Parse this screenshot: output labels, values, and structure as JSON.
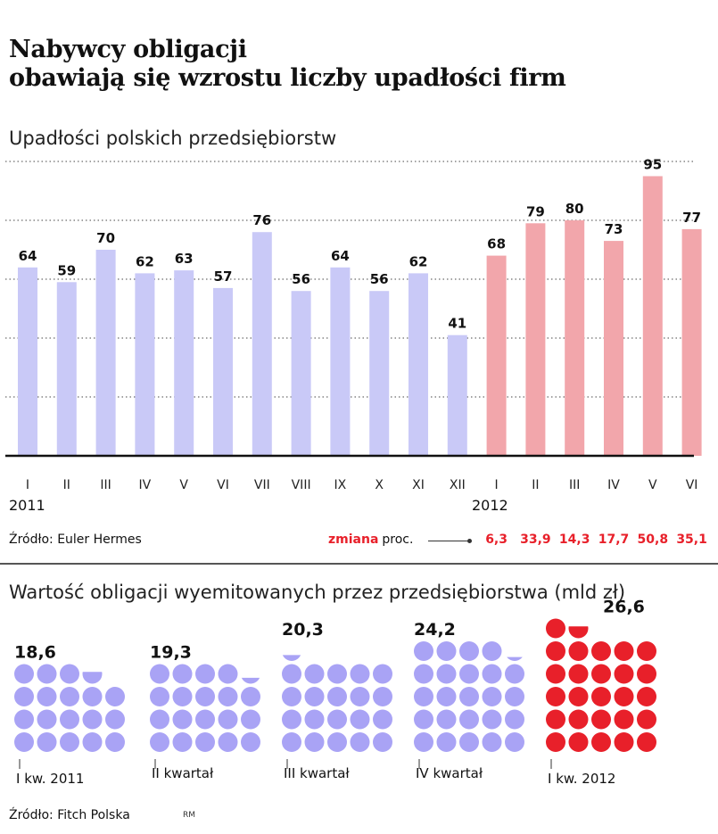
{
  "title_line1": "Nabywcy obligacji",
  "title_line2": "obawiają się wzrostu liczby upadłości firm",
  "bar_section": {
    "subtitle": "Upadłości polskich przedsiębiorstw",
    "source": "Źródło: Euler Hermes",
    "year_labels": [
      "2011",
      "2012"
    ],
    "change_label_red": "zmiana",
    "change_label_black": "proc.",
    "change_values": [
      "6,3",
      "33,9",
      "14,3",
      "17,7",
      "50,8",
      "35,1"
    ],
    "colors": {
      "2011": "#c9c9f7",
      "2012": "#f2a6ab",
      "accent": "#e8202a"
    }
  },
  "chart_data": [
    {
      "type": "bar",
      "title": "Upadłości polskich przedsiębiorstw",
      "categories": [
        "I",
        "II",
        "III",
        "IV",
        "V",
        "VI",
        "VII",
        "VIII",
        "IX",
        "X",
        "XI",
        "XII",
        "I",
        "II",
        "III",
        "IV",
        "V",
        "VI"
      ],
      "values": [
        64,
        59,
        70,
        62,
        63,
        57,
        76,
        56,
        64,
        56,
        62,
        41,
        68,
        79,
        80,
        73,
        95,
        77
      ],
      "series_year": [
        "2011",
        "2011",
        "2011",
        "2011",
        "2011",
        "2011",
        "2011",
        "2011",
        "2011",
        "2011",
        "2011",
        "2011",
        "2012",
        "2012",
        "2012",
        "2012",
        "2012",
        "2012"
      ],
      "ylim": [
        0,
        100
      ],
      "grid": true,
      "xlabel": "",
      "ylabel": ""
    },
    {
      "type": "pictogram",
      "title": "Wartość obligacji wyemitowanych przez przedsiębiorstwa (mld zł)",
      "categories": [
        "I kw. 2011",
        "II kwartał",
        "III kwartał",
        "IV kwartał",
        "I kw. 2012"
      ],
      "values": [
        18.6,
        19.3,
        20.3,
        24.2,
        26.6
      ],
      "value_labels": [
        "18,6",
        "19,3",
        "20,3",
        "24,2",
        "26,6"
      ],
      "unit_per_dot": 1,
      "colors": {
        "2011": "#a9a3f5",
        "2012": "#e8202a"
      }
    }
  ],
  "dot_section": {
    "subtitle": "Wartość obligacji wyemitowanych przez przedsiębiorstwa (mld zł)",
    "source": "Źródło: Fitch Polska",
    "credit": "RM"
  }
}
